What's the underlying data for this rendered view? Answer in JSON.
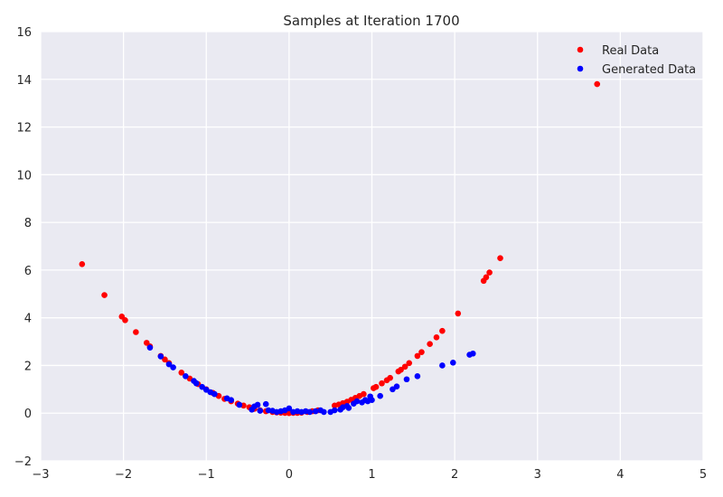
{
  "chart_data": {
    "type": "scatter",
    "title": "Samples at Iteration 1700",
    "xlabel": "",
    "ylabel": "",
    "xlim": [
      -3,
      5
    ],
    "ylim": [
      -2,
      16
    ],
    "x_ticks": [
      -3,
      -2,
      -1,
      0,
      1,
      2,
      3,
      4,
      5
    ],
    "x_tick_labels": [
      "−3",
      "−2",
      "−1",
      "0",
      "1",
      "2",
      "3",
      "4",
      "5"
    ],
    "y_ticks": [
      -2,
      0,
      2,
      4,
      6,
      8,
      10,
      12,
      14,
      16
    ],
    "y_tick_labels": [
      "−2",
      "0",
      "2",
      "4",
      "6",
      "8",
      "10",
      "12",
      "14",
      "16"
    ],
    "grid": true,
    "legend_position": "top-right",
    "series": [
      {
        "name": "Real Data",
        "color": "#ff0000",
        "points": [
          [
            -2.5,
            6.25
          ],
          [
            -2.23,
            4.95
          ],
          [
            -2.02,
            4.05
          ],
          [
            -1.98,
            3.9
          ],
          [
            -1.85,
            3.4
          ],
          [
            -1.72,
            2.95
          ],
          [
            -1.68,
            2.8
          ],
          [
            -1.55,
            2.4
          ],
          [
            -1.5,
            2.25
          ],
          [
            -1.45,
            2.1
          ],
          [
            -1.3,
            1.7
          ],
          [
            -1.2,
            1.45
          ],
          [
            -1.1,
            1.22
          ],
          [
            -1.0,
            1.0
          ],
          [
            -0.92,
            0.85
          ],
          [
            -0.85,
            0.72
          ],
          [
            -0.78,
            0.6
          ],
          [
            -0.7,
            0.5
          ],
          [
            -0.62,
            0.4
          ],
          [
            -0.55,
            0.32
          ],
          [
            -0.48,
            0.25
          ],
          [
            -0.42,
            0.18
          ],
          [
            -0.35,
            0.12
          ],
          [
            -0.28,
            0.08
          ],
          [
            -0.2,
            0.05
          ],
          [
            -0.15,
            0.03
          ],
          [
            -0.1,
            0.02
          ],
          [
            -0.05,
            0.01
          ],
          [
            0.0,
            0.0
          ],
          [
            0.05,
            0.01
          ],
          [
            0.1,
            0.01
          ],
          [
            0.15,
            0.02
          ],
          [
            0.22,
            0.05
          ],
          [
            0.28,
            0.08
          ],
          [
            0.35,
            0.12
          ],
          [
            0.55,
            0.32
          ],
          [
            0.6,
            0.36
          ],
          [
            0.65,
            0.42
          ],
          [
            0.7,
            0.48
          ],
          [
            0.75,
            0.56
          ],
          [
            0.8,
            0.64
          ],
          [
            0.85,
            0.72
          ],
          [
            0.9,
            0.8
          ],
          [
            1.02,
            1.05
          ],
          [
            1.05,
            1.1
          ],
          [
            1.12,
            1.25
          ],
          [
            1.18,
            1.38
          ],
          [
            1.22,
            1.48
          ],
          [
            1.32,
            1.75
          ],
          [
            1.35,
            1.82
          ],
          [
            1.4,
            1.95
          ],
          [
            1.45,
            2.1
          ],
          [
            1.55,
            2.4
          ],
          [
            1.6,
            2.56
          ],
          [
            1.7,
            2.9
          ],
          [
            1.78,
            3.18
          ],
          [
            1.85,
            3.45
          ],
          [
            2.04,
            4.18
          ],
          [
            2.35,
            5.55
          ],
          [
            2.38,
            5.7
          ],
          [
            2.42,
            5.9
          ],
          [
            2.55,
            6.5
          ],
          [
            3.72,
            13.8
          ]
        ]
      },
      {
        "name": "Generated Data",
        "color": "#0000ff",
        "points": [
          [
            -1.68,
            2.75
          ],
          [
            -1.55,
            2.38
          ],
          [
            -1.45,
            2.05
          ],
          [
            -1.4,
            1.92
          ],
          [
            -1.25,
            1.55
          ],
          [
            -1.15,
            1.35
          ],
          [
            -1.12,
            1.25
          ],
          [
            -1.05,
            1.1
          ],
          [
            -1.0,
            0.98
          ],
          [
            -0.95,
            0.88
          ],
          [
            -0.9,
            0.8
          ],
          [
            -0.75,
            0.62
          ],
          [
            -0.7,
            0.55
          ],
          [
            -0.6,
            0.35
          ],
          [
            -0.45,
            0.15
          ],
          [
            -0.42,
            0.28
          ],
          [
            -0.38,
            0.35
          ],
          [
            -0.35,
            0.1
          ],
          [
            -0.28,
            0.38
          ],
          [
            -0.25,
            0.12
          ],
          [
            -0.2,
            0.1
          ],
          [
            -0.15,
            0.05
          ],
          [
            -0.1,
            0.08
          ],
          [
            -0.05,
            0.12
          ],
          [
            0.0,
            0.2
          ],
          [
            0.05,
            0.05
          ],
          [
            0.1,
            0.08
          ],
          [
            0.15,
            0.05
          ],
          [
            0.2,
            0.08
          ],
          [
            0.25,
            0.05
          ],
          [
            0.32,
            0.08
          ],
          [
            0.38,
            0.12
          ],
          [
            0.42,
            0.05
          ],
          [
            0.5,
            0.05
          ],
          [
            0.55,
            0.12
          ],
          [
            0.62,
            0.15
          ],
          [
            0.65,
            0.25
          ],
          [
            0.7,
            0.3
          ],
          [
            0.72,
            0.22
          ],
          [
            0.78,
            0.4
          ],
          [
            0.82,
            0.5
          ],
          [
            0.88,
            0.45
          ],
          [
            0.92,
            0.55
          ],
          [
            0.95,
            0.5
          ],
          [
            0.98,
            0.7
          ],
          [
            1.0,
            0.55
          ],
          [
            1.1,
            0.72
          ],
          [
            1.25,
            1.0
          ],
          [
            1.3,
            1.12
          ],
          [
            1.42,
            1.42
          ],
          [
            1.55,
            1.55
          ],
          [
            1.85,
            2.0
          ],
          [
            1.98,
            2.12
          ],
          [
            2.18,
            2.45
          ],
          [
            2.22,
            2.5
          ]
        ]
      }
    ]
  }
}
